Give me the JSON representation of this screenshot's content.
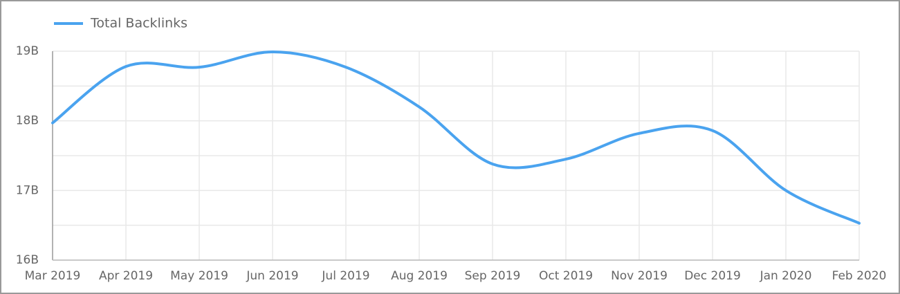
{
  "chart_data": {
    "type": "line",
    "categories": [
      "Mar 2019",
      "Apr 2019",
      "May 2019",
      "Jun 2019",
      "Jul 2019",
      "Aug 2019",
      "Sep 2019",
      "Oct 2019",
      "Nov 2019",
      "Dec 2019",
      "Jan 2020",
      "Feb 2020"
    ],
    "series": [
      {
        "name": "Total Backlinks",
        "color": "#4aa3ef",
        "values": [
          17970000000,
          18780000000,
          18770000000,
          18990000000,
          18770000000,
          18200000000,
          17380000000,
          17450000000,
          17820000000,
          17860000000,
          17000000000,
          16530000000
        ]
      }
    ],
    "ylim": [
      16000000000,
      19000000000
    ],
    "yticks": [
      {
        "value": 16000000000,
        "label": "16B"
      },
      {
        "value": 17000000000,
        "label": "17B"
      },
      {
        "value": 18000000000,
        "label": "18B"
      },
      {
        "value": 19000000000,
        "label": "19B"
      }
    ],
    "minor_yticks": [
      16500000000,
      17500000000,
      18500000000
    ],
    "grid": true,
    "smooth": true,
    "legend": "top-left"
  }
}
